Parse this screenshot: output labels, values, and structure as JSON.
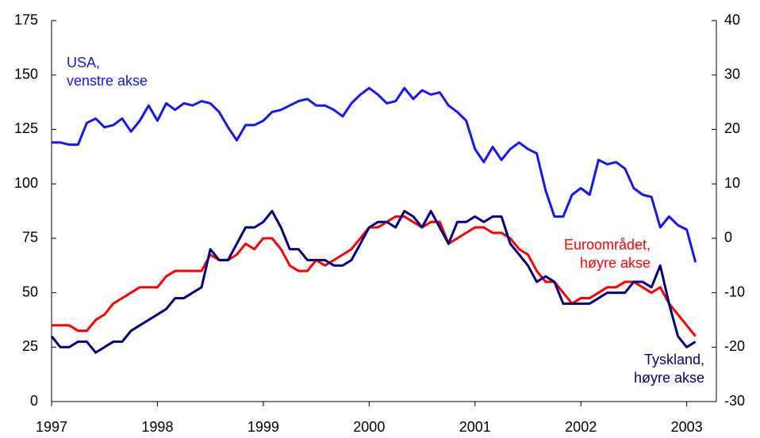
{
  "chart_data": {
    "type": "line",
    "x": [
      1997,
      1997.083,
      1997.167,
      1997.25,
      1997.333,
      1997.417,
      1997.5,
      1997.583,
      1997.667,
      1997.75,
      1997.833,
      1997.917,
      1998,
      1998.083,
      1998.167,
      1998.25,
      1998.333,
      1998.417,
      1998.5,
      1998.583,
      1998.667,
      1998.75,
      1998.833,
      1998.917,
      1999,
      1999.083,
      1999.167,
      1999.25,
      1999.333,
      1999.417,
      1999.5,
      1999.583,
      1999.667,
      1999.75,
      1999.833,
      1999.917,
      2000,
      2000.083,
      2000.167,
      2000.25,
      2000.333,
      2000.417,
      2000.5,
      2000.583,
      2000.667,
      2000.75,
      2000.833,
      2000.917,
      2001,
      2001.083,
      2001.167,
      2001.25,
      2001.333,
      2001.417,
      2001.5,
      2001.583,
      2001.667,
      2001.75,
      2001.833,
      2001.917,
      2002,
      2002.083,
      2002.167,
      2002.25,
      2002.333,
      2002.417,
      2002.5,
      2002.583,
      2002.667,
      2002.75,
      2002.833,
      2002.917,
      2003,
      2003.083
    ],
    "series": [
      {
        "color": "#1414ff",
        "axis": "y",
        "values": [
          119,
          119,
          118,
          118,
          128,
          130,
          126,
          127,
          130,
          124,
          129,
          136,
          129,
          137,
          134,
          137,
          136,
          138,
          137,
          133,
          126,
          120,
          127,
          127,
          129,
          133,
          134,
          136,
          138,
          139,
          136,
          136,
          134,
          131,
          137,
          141,
          144,
          141,
          137,
          138,
          144,
          139,
          143,
          141,
          142,
          136,
          133,
          129,
          116,
          110,
          117,
          111,
          116,
          119,
          116,
          114,
          97,
          85,
          85,
          95,
          98,
          95,
          111,
          109,
          110,
          107,
          98,
          95,
          94,
          80,
          85,
          81,
          79,
          64
        ]
      },
      {
        "color": "#ff0000",
        "axis": "y2",
        "values": [
          -16,
          -16,
          -16,
          -17,
          -17,
          -15,
          -14,
          -12,
          -11,
          -10,
          -9,
          -9,
          -9,
          -7,
          -6,
          -6,
          -6,
          -6,
          -3,
          -4,
          -4,
          -3,
          -1,
          -2,
          0,
          0,
          -2,
          -5,
          -6,
          -6,
          -4,
          -5,
          -4,
          -3,
          -2,
          0,
          2,
          2,
          3,
          4,
          4,
          3,
          2,
          3,
          3,
          -1,
          0,
          1,
          2,
          2,
          1,
          1,
          0,
          -2,
          -3,
          -6,
          -8,
          -8,
          -10,
          -12,
          -11,
          -11,
          -10,
          -9,
          -9,
          -8,
          -8,
          -9,
          -10,
          -9,
          -12,
          -14,
          -16,
          -18
        ]
      },
      {
        "color": "#000080",
        "axis": "y2",
        "values": [
          -18,
          -20,
          -20,
          -19,
          -19,
          -21,
          -20,
          -19,
          -19,
          -17,
          -16,
          -15,
          -14,
          -13,
          -11,
          -11,
          -10,
          -9,
          -2,
          -4,
          -4,
          -1,
          2,
          2,
          3,
          5,
          2,
          -2,
          -2,
          -4,
          -4,
          -4,
          -5,
          -5,
          -4,
          -1,
          2,
          3,
          3,
          2,
          5,
          4,
          2,
          5,
          2,
          -1,
          3,
          3,
          4,
          3,
          4,
          4,
          -1,
          -3,
          -5,
          -8,
          -7,
          -8,
          -12,
          -12,
          -12,
          -12,
          -11,
          -10,
          -10,
          -10,
          -8,
          -8,
          -9,
          -5,
          -12,
          -18,
          -20,
          -19
        ]
      }
    ],
    "annotations": [
      {
        "lines": [
          "USA,",
          "venstre akse"
        ],
        "color": "#1414ff"
      },
      {
        "lines": [
          "Euroområdet,",
          "høyre akse"
        ],
        "color": "#ff0000"
      },
      {
        "lines": [
          "Tyskland,",
          "høyre akse"
        ],
        "color": "#000080"
      }
    ],
    "xlim": [
      1997,
      2003.28
    ],
    "xticks": [
      1997,
      1998,
      1999,
      2000,
      2001,
      2002,
      2003
    ],
    "ylim": [
      0,
      175
    ],
    "yticks": [
      0,
      25,
      50,
      75,
      100,
      125,
      150,
      175
    ],
    "y2lim": [
      -30,
      40
    ],
    "y2ticks": [
      -30,
      -20,
      -10,
      0,
      10,
      20,
      30,
      40
    ]
  }
}
